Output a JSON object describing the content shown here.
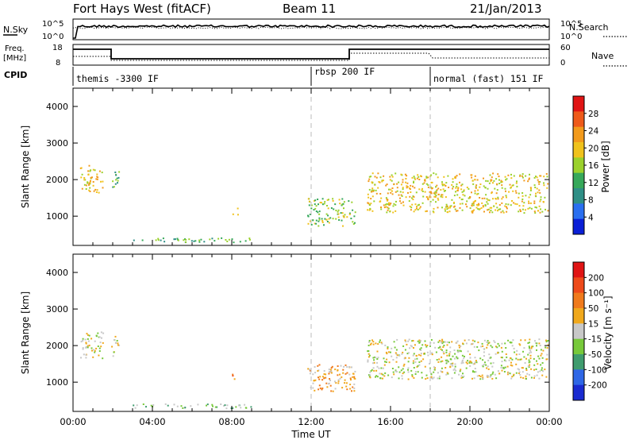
{
  "header": {
    "site": "Fort Hays West (fitACF)",
    "beam": "Beam 11",
    "date": "21/Jan/2013"
  },
  "top_panels": {
    "nsky_label": "N.Sky",
    "nsearch_label": "N.Search",
    "noise_left_ticks": [
      "10^5",
      "10^0"
    ],
    "noise_right_ticks": [
      "10^5",
      "10^0"
    ],
    "freq_label": "Freq.",
    "freq_unit": "[MHz]",
    "freq_ticks": [
      "18",
      "8"
    ],
    "nave_label": "Nave",
    "nave_ticks": [
      "60",
      "0"
    ],
    "cpid_label": "CPID",
    "cpid_segments": [
      {
        "label": "themis -3300 IF",
        "start_hour": 0
      },
      {
        "label": "rbsp 200 IF",
        "start_hour": 12
      },
      {
        "label": "normal (fast) 151 IF",
        "start_hour": 18
      }
    ]
  },
  "time_axis": {
    "label": "Time UT",
    "ticks": [
      "00:00",
      "04:00",
      "08:00",
      "12:00",
      "16:00",
      "20:00",
      "00:00"
    ]
  },
  "chart_data": [
    {
      "type": "heatmap",
      "name": "power",
      "ylabel": "Slant Range [km]",
      "yticks": [
        1000,
        2000,
        3000,
        4000
      ],
      "xlim_hours": [
        0,
        24
      ],
      "ylim_km": [
        200,
        4500
      ],
      "colorbar_label": "Power [dB]",
      "colorbar_ticks": [
        "28",
        "24",
        "20",
        "16",
        "12",
        "8",
        "4"
      ],
      "colors": [
        "#0a1fd6",
        "#2a6ff0",
        "#2f8f86",
        "#36a85a",
        "#9bd12c",
        "#f0c21c",
        "#f29a1c",
        "#ee5a1a",
        "#e01414"
      ],
      "regions": [
        {
          "t0": 0.3,
          "t1": 1.5,
          "r0": 1650,
          "r1": 2400,
          "level": 5
        },
        {
          "t0": 1.9,
          "t1": 2.3,
          "r0": 1700,
          "r1": 2300,
          "level": 3
        },
        {
          "t0": 8.0,
          "t1": 8.3,
          "r0": 1050,
          "r1": 1250,
          "level": 4
        },
        {
          "t0": 11.8,
          "t1": 14.2,
          "r0": 750,
          "r1": 1500,
          "level": 4
        },
        {
          "t0": 14.8,
          "t1": 23.9,
          "r0": 1100,
          "r1": 2200,
          "level": 5
        },
        {
          "t0": 3.0,
          "t1": 9.0,
          "r0": 300,
          "r1": 420,
          "level": 3
        }
      ]
    },
    {
      "type": "heatmap",
      "name": "velocity",
      "ylabel": "Slant Range [km]",
      "yticks": [
        1000,
        2000,
        3000,
        4000
      ],
      "xlim_hours": [
        0,
        24
      ],
      "ylim_km": [
        200,
        4500
      ],
      "colorbar_label": "Velocity [m s⁻¹]",
      "colorbar_ticks": [
        "200",
        "100",
        "50",
        "15",
        "-15",
        "-50",
        "-100",
        "-200"
      ],
      "colors": [
        "#1a2bd0",
        "#2f67e6",
        "#3f9c6e",
        "#77c93a",
        "#c8c8c8",
        "#f0a81c",
        "#f07a1c",
        "#ee4a1a",
        "#e01414"
      ],
      "regions": [
        {
          "t0": 0.3,
          "t1": 1.5,
          "r0": 1650,
          "r1": 2400,
          "level": 4
        },
        {
          "t0": 1.9,
          "t1": 2.3,
          "r0": 1700,
          "r1": 2300,
          "level": 4
        },
        {
          "t0": 8.0,
          "t1": 8.3,
          "r0": 1050,
          "r1": 1250,
          "level": 6
        },
        {
          "t0": 11.8,
          "t1": 14.2,
          "r0": 750,
          "r1": 1500,
          "level": 5
        },
        {
          "t0": 14.8,
          "t1": 23.9,
          "r0": 1100,
          "r1": 2200,
          "level": 4
        },
        {
          "t0": 3.0,
          "t1": 9.0,
          "r0": 300,
          "r1": 420,
          "level": 3
        }
      ]
    }
  ],
  "colors": {
    "grid_dash": "#bbbbbb",
    "line": "#000000"
  }
}
